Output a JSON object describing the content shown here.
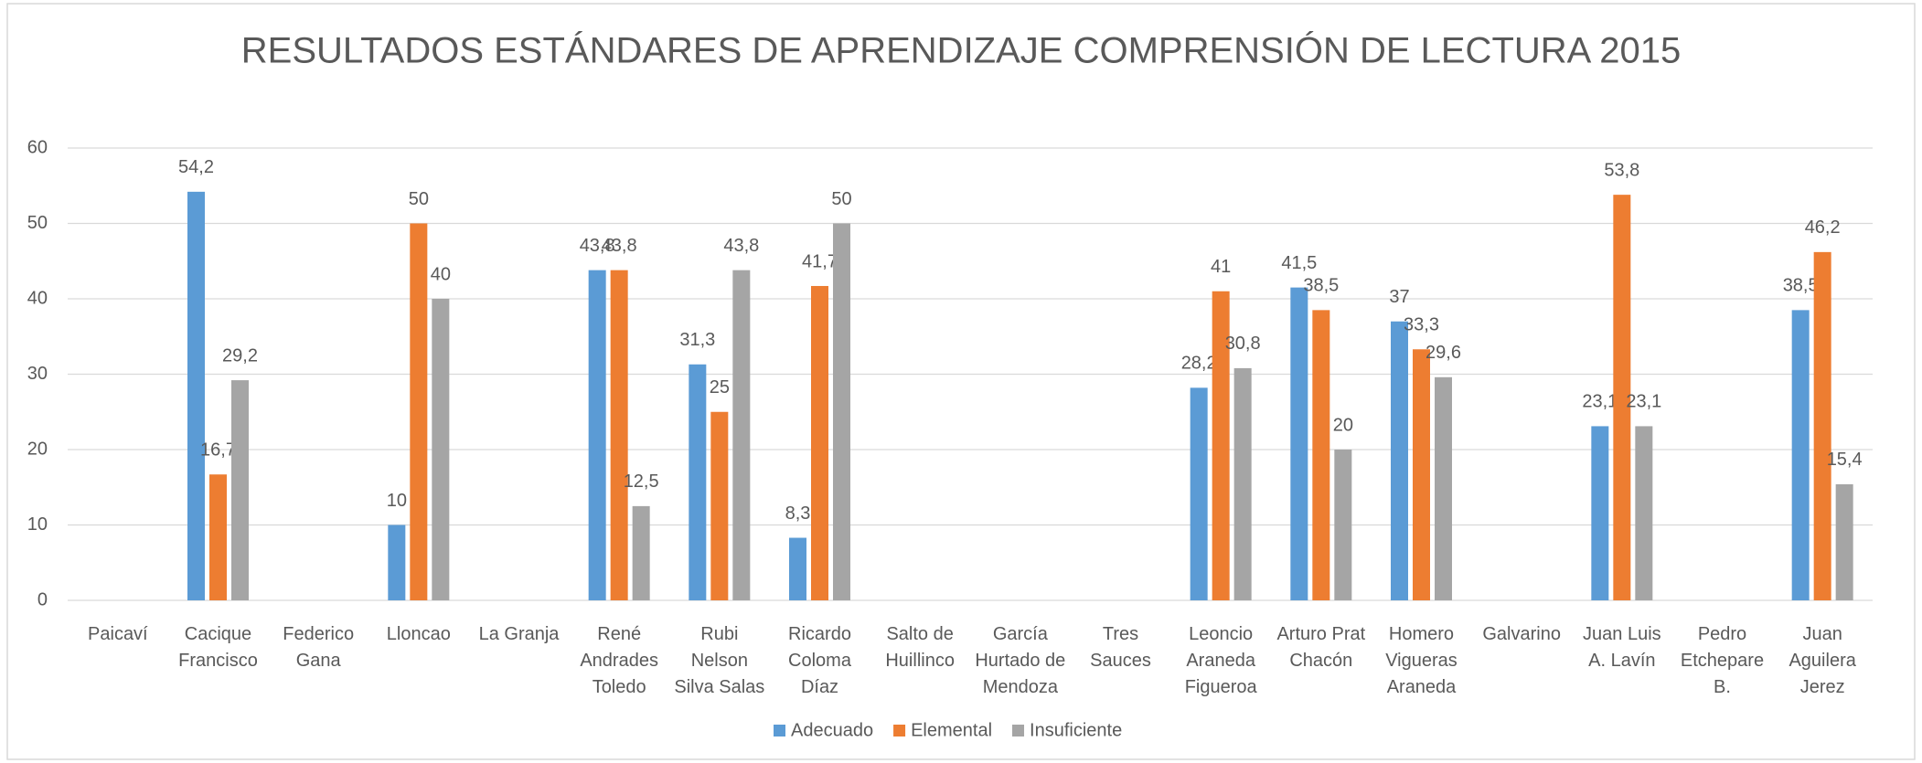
{
  "chart_data": {
    "type": "bar",
    "title": "RESULTADOS ESTÁNDARES DE APRENDIZAJE COMPRENSIÓN DE LECTURA 2015",
    "categories": [
      "Paicaví",
      "Cacique\nFrancisco",
      "Federico\nGana",
      "Lloncao",
      "La Granja",
      "René\nAndrades\nToledo",
      "Rubi\nNelson\nSilva Salas",
      "Ricardo\nColoma\nDíaz",
      "Salto de\nHuillinco",
      "García\nHurtado de\nMendoza",
      "Tres\nSauces",
      "Leoncio\nAraneda\nFigueroa",
      "Arturo Prat\nChacón",
      "Homero\nVigueras\nAraneda",
      "Galvarino",
      "Juan Luis\nA. Lavín",
      "Pedro\nEtchepare\nB.",
      "Juan\nAguilera\nJerez"
    ],
    "series": [
      {
        "name": "Adecuado",
        "color": "#5b9bd5",
        "values": [
          null,
          54.2,
          null,
          10,
          null,
          43.8,
          31.3,
          8.3,
          null,
          null,
          null,
          28.2,
          41.5,
          37,
          null,
          23.1,
          null,
          38.5
        ],
        "value_labels": [
          null,
          "54,2",
          null,
          "10",
          null,
          "43,8",
          "31,3",
          "8,3",
          null,
          null,
          null,
          "28,2",
          "41,5",
          "37",
          null,
          "23,1",
          null,
          "38,5"
        ]
      },
      {
        "name": "Elemental",
        "color": "#ed7d31",
        "values": [
          null,
          16.7,
          null,
          50,
          null,
          43.8,
          25,
          41.7,
          null,
          null,
          null,
          41,
          38.5,
          33.3,
          null,
          53.8,
          null,
          46.2
        ],
        "value_labels": [
          null,
          "16,7",
          null,
          "50",
          null,
          "43,8",
          "25",
          "41,7",
          null,
          null,
          null,
          "41",
          "38,5",
          "33,3",
          null,
          "53,8",
          null,
          "46,2"
        ]
      },
      {
        "name": "Insuficiente",
        "color": "#a5a5a5",
        "values": [
          null,
          29.2,
          null,
          40,
          null,
          12.5,
          43.8,
          50,
          null,
          null,
          null,
          30.8,
          20,
          29.6,
          null,
          23.1,
          null,
          15.4
        ],
        "value_labels": [
          null,
          "29,2",
          null,
          "40",
          null,
          "12,5",
          "43,8",
          "50",
          null,
          null,
          null,
          "30,8",
          "20",
          "29,6",
          null,
          "23,1",
          null,
          "15,4"
        ]
      }
    ],
    "ylim": [
      0,
      60
    ],
    "yticks": [
      0,
      10,
      20,
      30,
      40,
      50,
      60
    ],
    "grid": true,
    "legend": "bottom"
  }
}
